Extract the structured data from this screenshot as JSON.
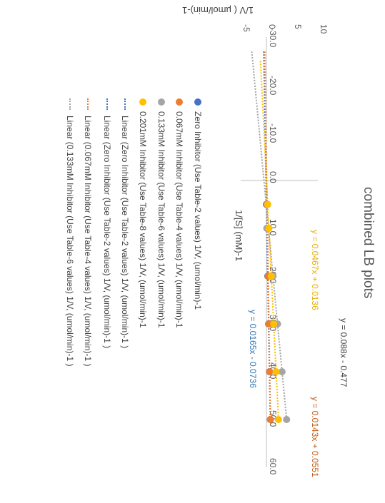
{
  "chart_data": {
    "type": "scatter",
    "title": "combined LB plots",
    "xlabel": "1/[S] (mM)-1",
    "ylabel": "1/V ( µmol/min)-1",
    "xlim": [
      -30,
      60
    ],
    "ylim": [
      -5,
      10
    ],
    "x_ticks": [
      "-30.0",
      "-20.0",
      "-10.0",
      "0.0",
      "10.0",
      "20.0",
      "30.0",
      "40.0",
      "50.0",
      "60.0"
    ],
    "y_ticks": [
      "-5",
      "0",
      "5",
      "10"
    ],
    "grid": false,
    "legend_position": "bottom",
    "series": [
      {
        "name": "Zero Inhibitor     (Use Table-2 values) 1/V, (umol/min)-1",
        "color": "#4472C4",
        "kind": "points",
        "x": [
          5,
          10,
          20,
          30,
          40,
          50
        ],
        "y": [
          0.01,
          0.09,
          0.26,
          0.42,
          0.59,
          0.75
        ]
      },
      {
        "name": "0.067mM Inhibitor (Use Table-4 values) 1/V, (umol/min)-1",
        "color": "#ED7D31",
        "kind": "points",
        "x": [
          5,
          10,
          20,
          30,
          40,
          50
        ],
        "y": [
          0.13,
          0.2,
          0.34,
          0.48,
          0.62,
          0.77
        ]
      },
      {
        "name": "0.133mM Inhibitor (Use Table-6 values) 1/V, (umol/min)-1",
        "color": "#A5A5A5",
        "kind": "points",
        "x": [
          5,
          10,
          20,
          30,
          40,
          50
        ],
        "y": [
          0.23,
          0.12,
          1.28,
          2.16,
          3.04,
          3.92
        ]
      },
      {
        "name": "0.201mM Inhibitor (Use Table-8 values) 1/V, (umol/min)-1",
        "color": "#FFC000",
        "kind": "points",
        "x": [
          5,
          10,
          20,
          30,
          40,
          50
        ],
        "y": [
          0.25,
          0.48,
          0.95,
          1.41,
          1.88,
          2.35
        ]
      },
      {
        "name": "Linear (Zero Inhibitor     (Use Table-2 values) 1/V, (umol/min)-1 )",
        "color": "#4472C4",
        "kind": "trend",
        "slope": 0.0165,
        "intercept": -0.0736
      },
      {
        "name": "Linear (Zero Inhibitor     (Use Table-2 values) 1/V, (umol/min)-1 )",
        "color": "#4472C4",
        "kind": "trend",
        "slope": 0.0165,
        "intercept": -0.0736
      },
      {
        "name": "Linear (0.067mM Inhibitor (Use Table-4 values) 1/V, (umol/min)-1 )",
        "color": "#ED7D31",
        "kind": "trend",
        "slope": 0.0143,
        "intercept": 0.0551
      },
      {
        "name": "Linear (0.133mM Inhibitor (Use Table-6 values) 1/V, (umol/min)-1 )",
        "color": "#A5A5A5",
        "kind": "trend",
        "slope": 0.088,
        "intercept": -0.477
      }
    ],
    "annotations": [
      {
        "text": "y = 0.088x - 0.477",
        "color": "#404040"
      },
      {
        "text": "y = 0.0467x + 0.0136",
        "color": "#E6B000"
      },
      {
        "text": "y = 0.0165x - 0.0736",
        "color": "#2E75B6"
      },
      {
        "text": "y = 0.0143x + 0.0551",
        "color": "#C55A11"
      }
    ]
  }
}
